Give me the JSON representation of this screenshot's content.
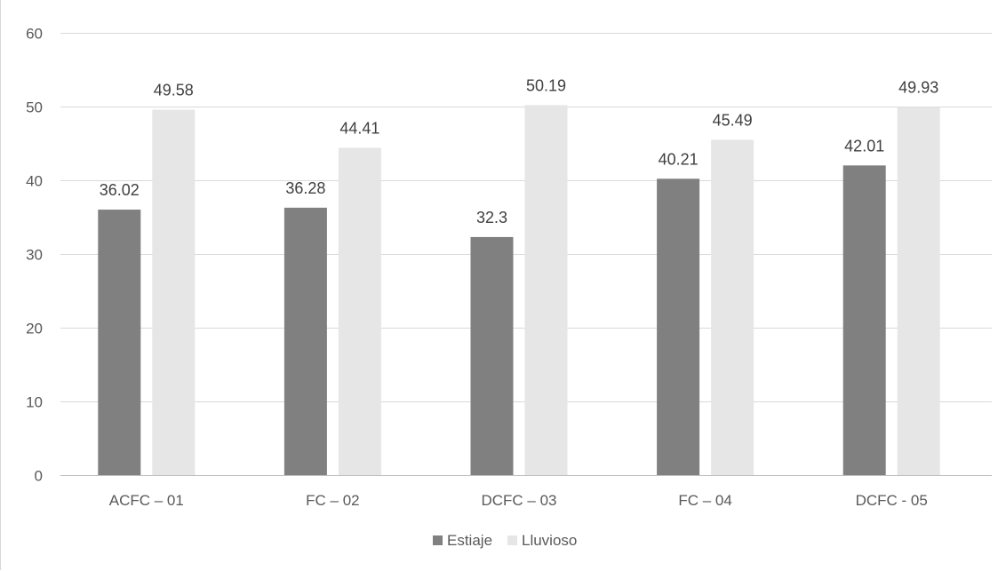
{
  "chart_data": {
    "type": "bar",
    "categories": [
      "ACFC – 01",
      "FC – 02",
      "DCFC – 03",
      "FC – 04",
      "DCFC - 05"
    ],
    "series": [
      {
        "name": "Estiaje",
        "values": [
          36.02,
          36.28,
          32.3,
          40.21,
          42.01
        ],
        "color": "#808080"
      },
      {
        "name": "Lluvioso",
        "values": [
          49.58,
          44.41,
          50.19,
          45.49,
          49.93
        ],
        "color": "#e6e6e6"
      }
    ],
    "ylim": [
      0,
      60
    ],
    "yticks": [
      0,
      10,
      20,
      30,
      40,
      50,
      60
    ],
    "grid": true,
    "legend": "bottom",
    "data_labels": true
  }
}
